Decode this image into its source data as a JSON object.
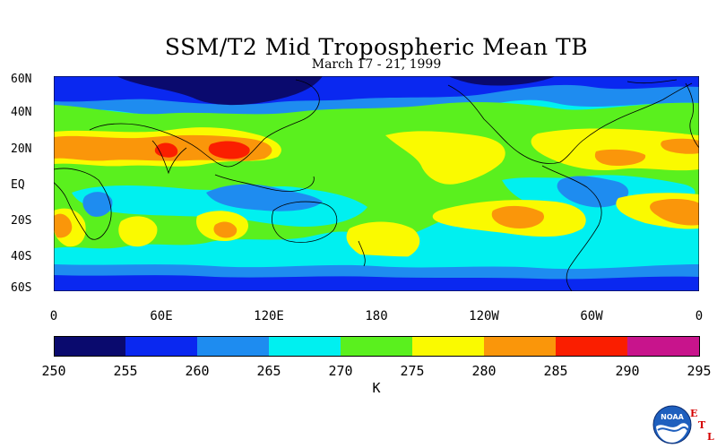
{
  "title": "SSM/T2 Mid Tropospheric Mean TB",
  "subtitle": "March 17 - 21, 1999",
  "lat_labels": [
    "60N",
    "40N",
    "20N",
    "EQ",
    "20S",
    "40S",
    "60S"
  ],
  "lon_labels": [
    "0",
    "60E",
    "120E",
    "180",
    "120W",
    "60W",
    "0"
  ],
  "colorbar": {
    "ticks": [
      "250",
      "255",
      "260",
      "265",
      "270",
      "275",
      "280",
      "285",
      "290",
      "295"
    ],
    "unit": "K",
    "colors": [
      "#0a0a6e",
      "#0a28f0",
      "#1e8cf0",
      "#00f0f0",
      "#5af01e",
      "#fafa00",
      "#fa960a",
      "#fa1e00",
      "#c8148c"
    ]
  },
  "logo": {
    "name": "NOAA",
    "etl": [
      "E",
      "T",
      "L"
    ]
  }
}
